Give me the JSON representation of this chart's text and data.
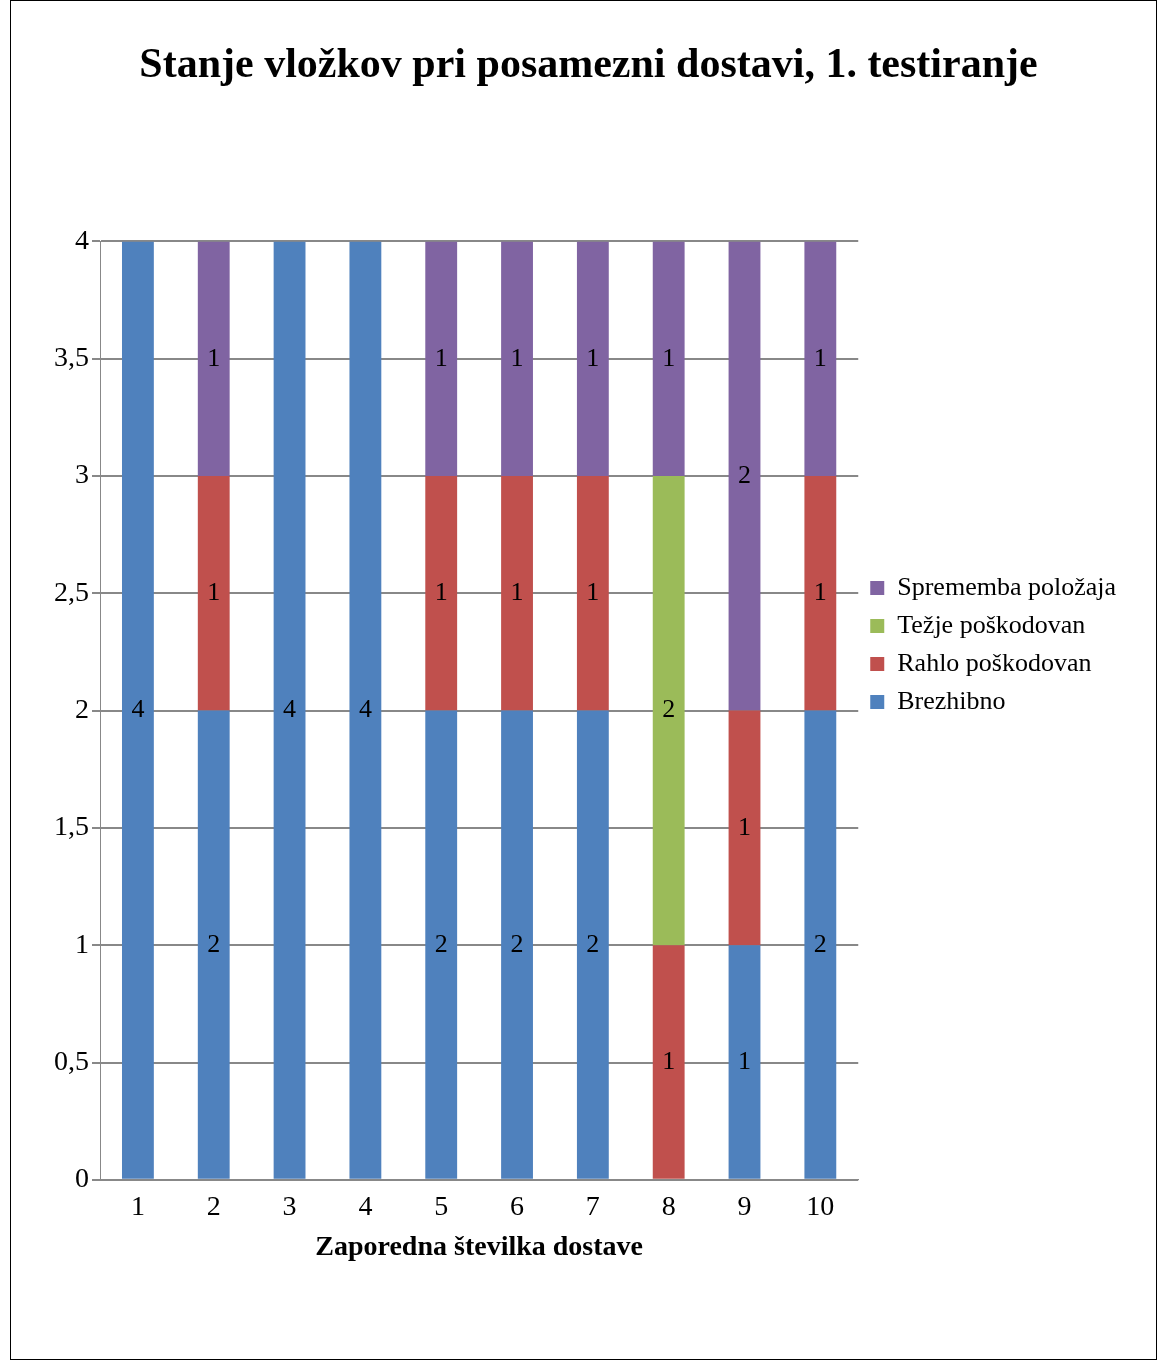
{
  "chart_data": {
    "type": "bar",
    "title": "Stanje vložkov pri posamezni dostavi, 1. testiranje",
    "xlabel": "Zaporedna številka dostave",
    "categories": [
      "1",
      "2",
      "3",
      "4",
      "5",
      "6",
      "7",
      "8",
      "9",
      "10"
    ],
    "stacked": true,
    "series": [
      {
        "name": "Brezhibno",
        "color": "#4f81bd",
        "values": [
          4,
          2,
          4,
          4,
          2,
          2,
          2,
          null,
          1,
          2
        ]
      },
      {
        "name": "Rahlo poškodovan",
        "color": "#c0504d",
        "values": [
          null,
          1,
          null,
          null,
          1,
          1,
          1,
          1,
          1,
          1
        ]
      },
      {
        "name": "Težje poškodovan",
        "color": "#9bbb59",
        "values": [
          null,
          null,
          null,
          null,
          null,
          null,
          null,
          2,
          null,
          null
        ]
      },
      {
        "name": "Sprememba položaja",
        "color": "#8064a2",
        "values": [
          null,
          1,
          null,
          null,
          1,
          1,
          1,
          1,
          2,
          1
        ]
      }
    ],
    "ylim": [
      0,
      4
    ],
    "yticks": [
      0,
      {
        "value": 0.5,
        "label": "0,5"
      },
      1,
      {
        "value": 1.5,
        "label": "1,5"
      },
      2,
      {
        "value": 2.5,
        "label": "2,5"
      },
      3,
      {
        "value": 3.5,
        "label": "3,5"
      },
      4
    ],
    "grid": "y",
    "legend": "right",
    "data_labels": true
  }
}
